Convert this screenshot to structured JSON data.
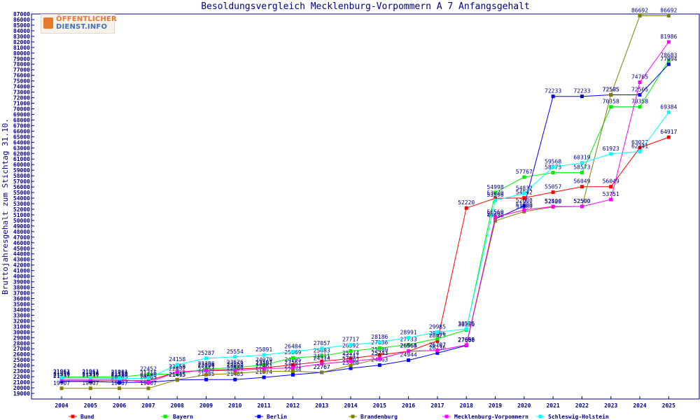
{
  "logo": {
    "line1": "ÖFFENTLICHER",
    "line2": "DIENST.INFO"
  },
  "chart_data": {
    "type": "line",
    "title": "Besoldungsvergleich Mecklenburg-Vorpommern A 7 Anfangsgehalt",
    "ylabel": "Bruttojahresgehalt zum Stichtag 31.10.",
    "xlabel": "",
    "categories": [
      "2004",
      "2005",
      "2006",
      "2007",
      "2008",
      "2009",
      "2010",
      "2011",
      "2012",
      "2013",
      "2014",
      "2015",
      "2016",
      "2017",
      "2018",
      "2019",
      "2020",
      "2021",
      "2022",
      "2023",
      "2024",
      "2025"
    ],
    "ylim": [
      19000,
      87000
    ],
    "ytick_step": 1000,
    "grid": false,
    "legend_position": "bottom",
    "series": [
      {
        "name": "Bund",
        "color": "#ff0000",
        "values": [
          21271,
          21271,
          21290,
          21290,
          22856,
          23124,
          23353,
          23597,
          24105,
          24711,
          25274,
          25889,
          26564,
          28425,
          52220,
          53970,
          54042,
          55057,
          56049,
          56049,
          63027,
          64917
        ]
      },
      {
        "name": "Bayern",
        "color": "#00ee00",
        "values": [
          21961,
          21961,
          21901,
          22452,
          22452,
          23386,
          23626,
          24079,
          25369,
          25683,
          26592,
          27136,
          27733,
          28806,
          30359,
          54998,
          57767,
          58573,
          58573,
          70358,
          70358,
          78683
        ]
      },
      {
        "name": "Berlin",
        "color": "#0000ff",
        "values": [
          21131,
          21131,
          20965,
          20965,
          21415,
          21485,
          21485,
          21874,
          22334,
          22767,
          23500,
          24063,
          24944,
          26236,
          27580,
          50268,
          52608,
          72233,
          72233,
          72505,
          72505,
          77994
        ]
      },
      {
        "name": "Brandenburg",
        "color": "#808000",
        "values": [
          19907,
          19907,
          19907,
          19907,
          21445,
          22354,
          22580,
          22961,
          22961,
          22767,
          24007,
          25243,
          26565,
          26707,
          27655,
          49930,
          51580,
          52420,
          52500,
          72505,
          86692,
          86692
        ]
      },
      {
        "name": "Mecklenburg-Vorpommern",
        "color": "#ff00ff",
        "values": [
          21516,
          21516,
          21516,
          20965,
          22853,
          23096,
          23090,
          23461,
          23561,
          24314,
          24741,
          25243,
          26564,
          26707,
          27666,
          50560,
          51880,
          52500,
          52500,
          53751,
          74765,
          81986
        ]
      },
      {
        "name": "Schleswig-Holstein",
        "color": "#00ffff",
        "values": [
          21814,
          21814,
          21716,
          21716,
          24158,
          25287,
          25554,
          25891,
          26484,
          27057,
          27717,
          28186,
          28991,
          29985,
          30525,
          53596,
          54832,
          59568,
          60319,
          61923,
          62341,
          69384
        ]
      }
    ]
  }
}
